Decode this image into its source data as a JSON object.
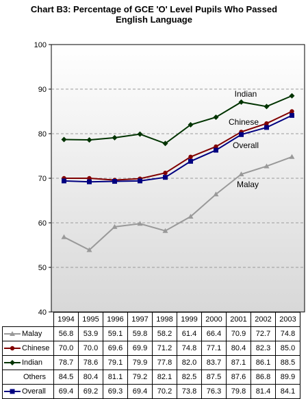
{
  "title": "Chart B3: Percentage of GCE 'O' Level Pupils Who Passed English Language",
  "title_lines": [
    "Chart B3: Percentage of GCE 'O' Level Pupils Who Passed",
    "English Language"
  ],
  "chart_data": {
    "type": "line",
    "title": "Chart B3: Percentage of GCE 'O' Level Pupils Who Passed English Language",
    "xlabel": "",
    "ylabel": "",
    "x": [
      "1994",
      "1995",
      "1996",
      "1997",
      "1998",
      "1999",
      "2000",
      "2001",
      "2002",
      "2003"
    ],
    "ylim": [
      40,
      100
    ],
    "yticks": [
      40,
      50,
      60,
      70,
      80,
      90,
      100
    ],
    "grid": true,
    "legend": "data-table-bottom",
    "series": [
      {
        "name": "Malay",
        "values": [
          56.8,
          53.9,
          59.1,
          59.8,
          58.2,
          61.4,
          66.4,
          70.9,
          72.7,
          74.8
        ],
        "color": "#999999",
        "marker": "triangle",
        "plotted": true
      },
      {
        "name": "Chinese",
        "values": [
          70.0,
          70.0,
          69.6,
          69.9,
          71.2,
          74.8,
          77.1,
          80.4,
          82.3,
          85.0
        ],
        "color": "#800000",
        "marker": "circle",
        "plotted": true
      },
      {
        "name": "Indian",
        "values": [
          78.7,
          78.6,
          79.1,
          79.9,
          77.8,
          82.0,
          83.7,
          87.1,
          86.1,
          88.5
        ],
        "color": "#003300",
        "marker": "diamond",
        "plotted": true
      },
      {
        "name": "Others",
        "values": [
          84.5,
          80.4,
          81.1,
          79.2,
          82.1,
          82.5,
          87.5,
          87.6,
          86.8,
          89.9
        ],
        "color": "#000000",
        "marker": "none",
        "plotted": false
      },
      {
        "name": "Overall",
        "values": [
          69.4,
          69.2,
          69.3,
          69.4,
          70.2,
          73.8,
          76.3,
          79.8,
          81.4,
          84.1
        ],
        "color": "#000080",
        "marker": "square",
        "plotted": true
      }
    ],
    "annotations": [
      "Indian",
      "Chinese",
      "Overall",
      "Malay"
    ]
  }
}
